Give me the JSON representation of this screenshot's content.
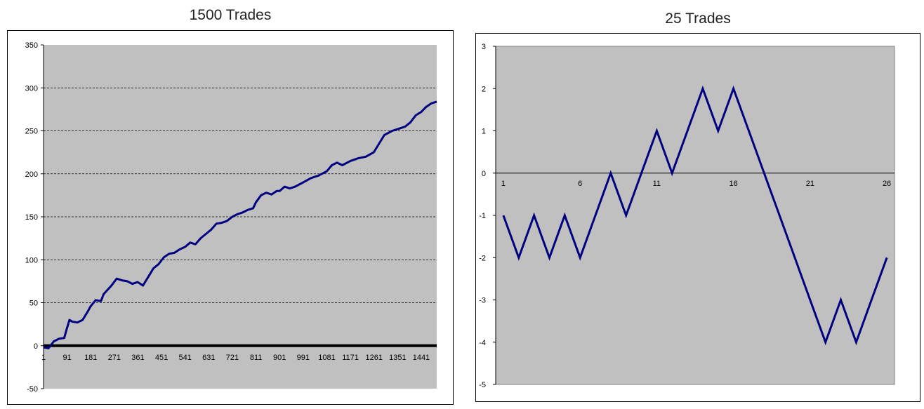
{
  "colors": {
    "plot_bg": "#c0c0c0",
    "line": "#000080",
    "grid": "#000000",
    "frame": "#000000"
  },
  "chart_data": [
    {
      "type": "line",
      "title": "1500 Trades",
      "xlabel": "",
      "ylabel": "",
      "x_tick_labels": [
        "1",
        "91",
        "181",
        "271",
        "361",
        "451",
        "541",
        "631",
        "721",
        "811",
        "901",
        "991",
        "1081",
        "1171",
        "1261",
        "1351",
        "1441"
      ],
      "y_tick_labels": [
        "350",
        "300",
        "250",
        "200",
        "150",
        "100",
        "50",
        "0",
        "-50"
      ],
      "ylim": [
        -50,
        350
      ],
      "xlim": [
        1,
        1500
      ],
      "grid": "horizontal dashed",
      "series": [
        {
          "x": [
            1,
            20,
            40,
            60,
            80,
            90,
            100,
            110,
            130,
            150,
            170,
            181,
            200,
            220,
            230,
            260,
            280,
            300,
            320,
            340,
            360,
            380,
            400,
            420,
            440,
            460,
            480,
            500,
            520,
            541,
            560,
            580,
            600,
            620,
            640,
            660,
            680,
            700,
            721,
            740,
            760,
            780,
            800,
            811,
            830,
            850,
            870,
            890,
            901,
            920,
            940,
            960,
            991,
            1020,
            1050,
            1081,
            1100,
            1120,
            1140,
            1171,
            1200,
            1230,
            1260,
            1280,
            1300,
            1330,
            1351,
            1380,
            1400,
            1420,
            1441,
            1460,
            1480,
            1500
          ],
          "y": [
            -2,
            -3,
            5,
            8,
            9,
            20,
            30,
            28,
            27,
            30,
            40,
            46,
            53,
            52,
            60,
            70,
            78,
            76,
            75,
            72,
            74,
            70,
            80,
            90,
            95,
            103,
            107,
            108,
            112,
            115,
            120,
            118,
            125,
            130,
            135,
            142,
            143,
            145,
            150,
            153,
            155,
            158,
            160,
            167,
            175,
            178,
            176,
            180,
            180,
            185,
            183,
            185,
            190,
            195,
            198,
            203,
            210,
            213,
            210,
            215,
            218,
            220,
            225,
            235,
            245,
            250,
            252,
            255,
            260,
            268,
            272,
            278,
            282,
            284
          ]
        }
      ]
    },
    {
      "type": "line",
      "title": "25 Trades",
      "xlabel": "",
      "ylabel": "",
      "x_tick_labels": [
        "1",
        "6",
        "11",
        "16",
        "21",
        "26"
      ],
      "y_tick_labels": [
        "3",
        "2",
        "1",
        "0",
        "-1",
        "-2",
        "-3",
        "-4",
        "-5"
      ],
      "ylim": [
        -5,
        3
      ],
      "xlim": [
        1,
        26
      ],
      "grid": "none",
      "series": [
        {
          "x": [
            1,
            2,
            3,
            4,
            5,
            6,
            7,
            8,
            9,
            10,
            11,
            12,
            13,
            14,
            15,
            16,
            17,
            18,
            19,
            20,
            21,
            22,
            23,
            24,
            25,
            26
          ],
          "y": [
            -1,
            -2,
            -1,
            -2,
            -1,
            -2,
            -1,
            0,
            -1,
            0,
            1,
            0,
            1,
            2,
            1,
            2,
            1,
            0,
            -1,
            -2,
            -3,
            -4,
            -3,
            -4,
            -3,
            -2
          ]
        }
      ]
    }
  ]
}
